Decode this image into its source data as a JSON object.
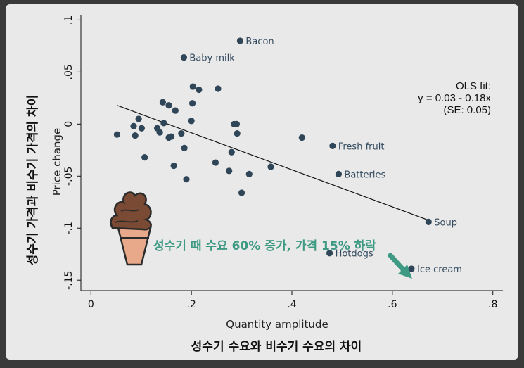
{
  "chart_data": {
    "type": "scatter",
    "xlabel": "Quantity amplitude",
    "ylabel": "Price change",
    "xlabel_kr": "성수기 수요와 비수기 수요의 차이",
    "ylabel_kr": "성수기 가격과 비수기 가격의 차이",
    "xlim": [
      -0.02,
      0.82
    ],
    "ylim": [
      -0.16,
      0.105
    ],
    "xticks": [
      {
        "value": 0,
        "label": "0"
      },
      {
        "value": 0.2,
        "label": ".2"
      },
      {
        "value": 0.4,
        "label": ".4"
      },
      {
        "value": 0.6,
        "label": ".6"
      },
      {
        "value": 0.8,
        "label": ".8"
      }
    ],
    "yticks": [
      {
        "value": -0.15,
        "label": "-.15"
      },
      {
        "value": -0.1,
        "label": "-.1"
      },
      {
        "value": -0.05,
        "label": "-.05"
      },
      {
        "value": 0,
        "label": "0"
      },
      {
        "value": 0.05,
        "label": ".05"
      },
      {
        "value": 0.1,
        "label": ".1"
      }
    ],
    "fit_line": {
      "x": [
        0.052,
        0.67
      ],
      "y": [
        0.018,
        -0.092
      ]
    },
    "ols_text": [
      "OLS fit:",
      "y = 0.03 - 0.18x",
      "(SE: 0.05)"
    ],
    "points": [
      {
        "x": 0.297,
        "y": 0.08,
        "label": "Bacon"
      },
      {
        "x": 0.185,
        "y": 0.064,
        "label": "Baby milk"
      },
      {
        "x": 0.481,
        "y": -0.021,
        "label": "Fresh fruit"
      },
      {
        "x": 0.493,
        "y": -0.048,
        "label": "Batteries"
      },
      {
        "x": 0.672,
        "y": -0.094,
        "label": "Soup"
      },
      {
        "x": 0.475,
        "y": -0.124,
        "label": "Hotdogs"
      },
      {
        "x": 0.638,
        "y": -0.139,
        "label": "Ice cream"
      },
      {
        "x": 0.052,
        "y": -0.01
      },
      {
        "x": 0.085,
        "y": -0.002
      },
      {
        "x": 0.088,
        "y": -0.011
      },
      {
        "x": 0.095,
        "y": 0.005
      },
      {
        "x": 0.101,
        "y": -0.004
      },
      {
        "x": 0.107,
        "y": -0.032
      },
      {
        "x": 0.132,
        "y": -0.004
      },
      {
        "x": 0.137,
        "y": -0.008
      },
      {
        "x": 0.143,
        "y": 0.021
      },
      {
        "x": 0.145,
        "y": 0.001
      },
      {
        "x": 0.155,
        "y": 0.018
      },
      {
        "x": 0.155,
        "y": -0.013
      },
      {
        "x": 0.16,
        "y": -0.012
      },
      {
        "x": 0.165,
        "y": -0.04
      },
      {
        "x": 0.168,
        "y": 0.013
      },
      {
        "x": 0.18,
        "y": -0.009
      },
      {
        "x": 0.186,
        "y": -0.023
      },
      {
        "x": 0.19,
        "y": -0.053
      },
      {
        "x": 0.2,
        "y": 0.003
      },
      {
        "x": 0.202,
        "y": 0.02
      },
      {
        "x": 0.203,
        "y": 0.036
      },
      {
        "x": 0.215,
        "y": 0.033
      },
      {
        "x": 0.248,
        "y": -0.037
      },
      {
        "x": 0.253,
        "y": 0.034
      },
      {
        "x": 0.275,
        "y": -0.045
      },
      {
        "x": 0.28,
        "y": -0.027
      },
      {
        "x": 0.285,
        "y": 0.0
      },
      {
        "x": 0.29,
        "y": 0.0
      },
      {
        "x": 0.291,
        "y": -0.009
      },
      {
        "x": 0.3,
        "y": -0.066
      },
      {
        "x": 0.315,
        "y": -0.048
      },
      {
        "x": 0.358,
        "y": -0.041
      },
      {
        "x": 0.42,
        "y": -0.013
      }
    ],
    "annotations": [
      "성수기 때 수요 60% 증가, 가격 15% 하락"
    ],
    "grid": false,
    "point_color": "#2f4558",
    "annotation_color": "#3f9a84"
  }
}
